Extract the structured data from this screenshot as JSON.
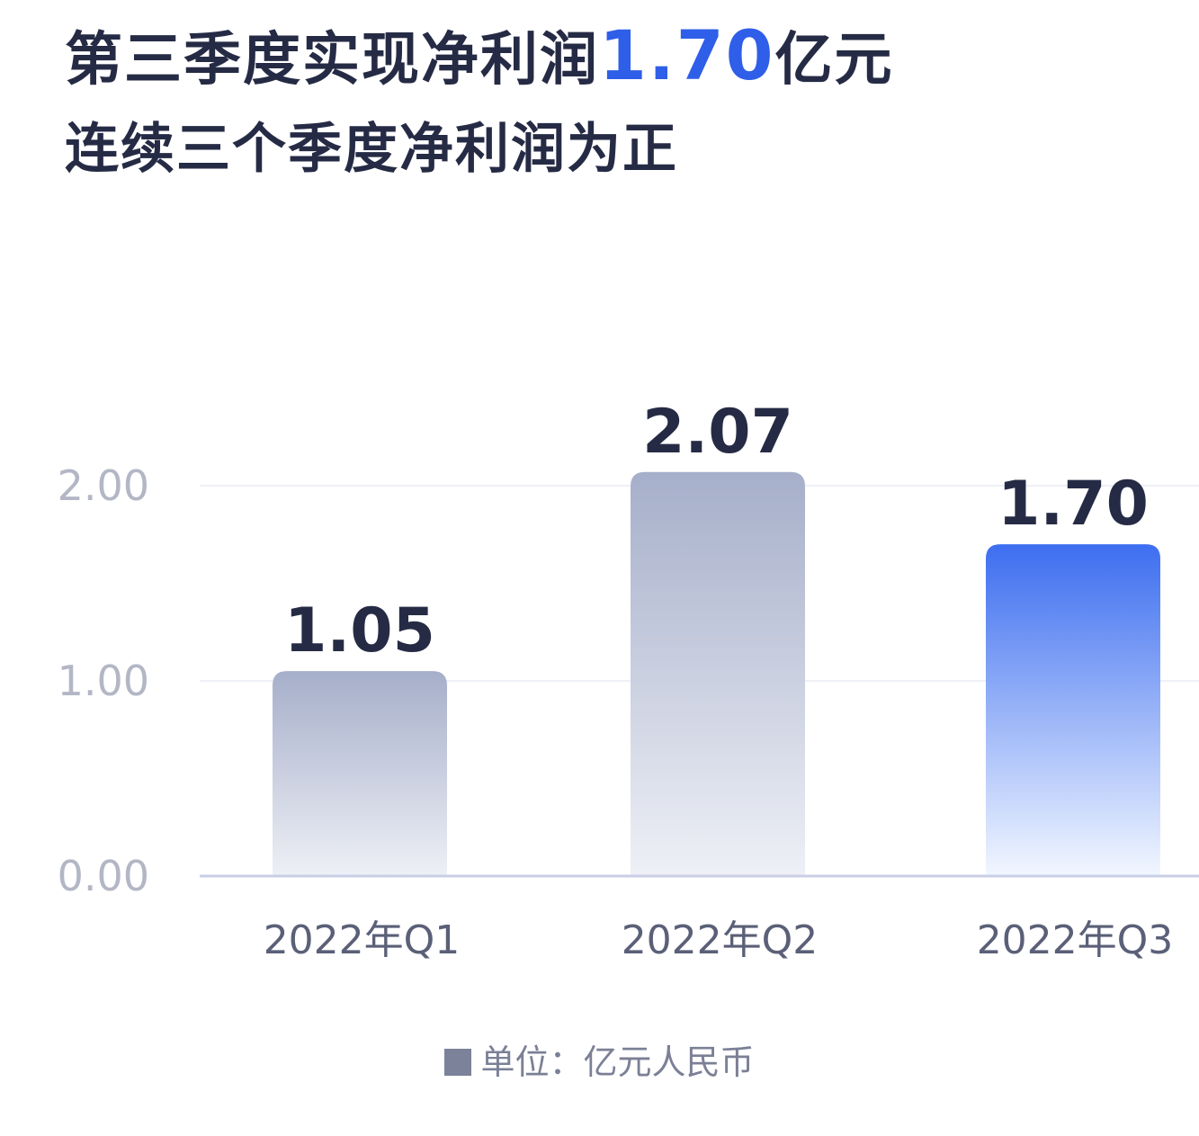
{
  "title": {
    "prefix": "第三季度实现净利润",
    "highlight": "1.70",
    "suffix": "亿元",
    "subtitle": "连续三个季度净利润为正"
  },
  "legend": {
    "label": "单位：亿元人民币"
  },
  "colors": {
    "title_text": "#262b45",
    "highlight": "#2f5ee8",
    "gray_bar_top": "#a6afca",
    "gray_bar_bottom": "#eef0f6",
    "blue_bar_top": "#3d6ef0",
    "blue_bar_bottom": "#f2f7ff",
    "tick_label": "#b3b6c5",
    "category_label": "#5b6078",
    "value_label": "#262b45",
    "axis": "#c9cfe6",
    "grid": "#eef0f7",
    "legend_swatch": "#7c8299"
  },
  "chart_data": {
    "type": "bar",
    "categories": [
      "2022年Q1",
      "2022年Q2",
      "2022年Q3"
    ],
    "values": [
      1.05,
      2.07,
      1.7
    ],
    "value_labels": [
      "1.05",
      "2.07",
      "1.70"
    ],
    "highlight_index": 2,
    "ylim": [
      0,
      2.0
    ],
    "yticks": [
      0,
      1,
      2
    ],
    "ytick_labels": [
      "0.00",
      "1.00",
      "2.00"
    ],
    "grid": true,
    "unit": "单位：亿元人民币",
    "legend_position": "bottom-center"
  }
}
